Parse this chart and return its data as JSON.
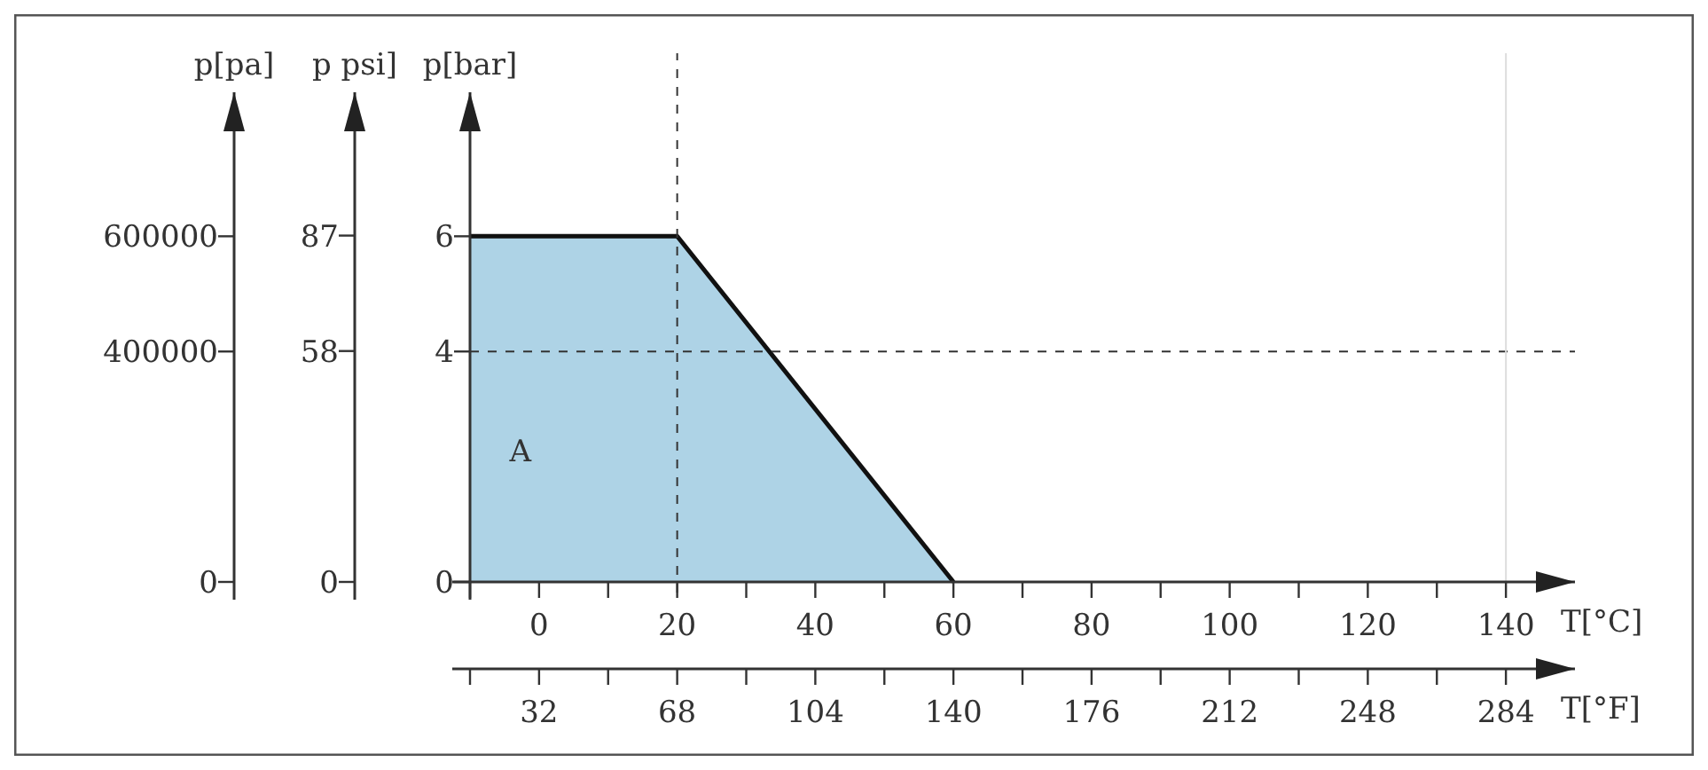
{
  "chart_data": {
    "type": "area",
    "xlabel": "T[°C]",
    "x2label": "T[°F]",
    "ylabel": "p[bar]",
    "y2label": "p psi]",
    "y3label": "p[pa]",
    "xlim": [
      -10,
      150
    ],
    "xticks": [
      {
        "value": -10,
        "label": null
      },
      0,
      {
        "value": 10,
        "label": null
      },
      20,
      {
        "value": 30,
        "label": null
      },
      40,
      {
        "value": 50,
        "label": null
      },
      60,
      {
        "value": 70,
        "label": null
      },
      80,
      {
        "value": 90,
        "label": null
      },
      100,
      {
        "value": 110,
        "label": null
      },
      120,
      {
        "value": 130,
        "label": null
      },
      140
    ],
    "x2lim": [
      14,
      302
    ],
    "x2ticks": [
      {
        "value": 14,
        "label": null
      },
      32,
      {
        "value": 50,
        "label": null
      },
      68,
      {
        "value": 86,
        "label": null
      },
      104,
      {
        "value": 122,
        "label": null
      },
      140,
      {
        "value": 158,
        "label": null
      },
      176,
      {
        "value": 194,
        "label": null
      },
      212,
      {
        "value": 230,
        "label": null
      },
      248,
      {
        "value": 266,
        "label": null
      },
      284
    ],
    "ylim": [
      0,
      8.5
    ],
    "yticks": [
      0,
      4,
      6
    ],
    "y2lim": [
      0,
      123
    ],
    "y2ticks": [
      0,
      58,
      87
    ],
    "y3lim": [
      0,
      850000
    ],
    "y3ticks": [
      0,
      400000,
      600000
    ],
    "series": [
      {
        "x": [
          -10,
          20,
          60
        ],
        "values": [
          6,
          6,
          0
        ],
        "color": "#aed3e6"
      }
    ],
    "ref_lines": [
      {
        "axis": "x",
        "value": 20,
        "line_style": "dashed",
        "color": "#333333"
      },
      {
        "axis": "y",
        "value": 4,
        "line_style": "dashed",
        "color": "#333333"
      },
      {
        "axis": "x",
        "value": 140,
        "line_style": "solid",
        "color": "#dddddd"
      }
    ],
    "annotations": [
      "A"
    ],
    "grid": false,
    "marker": "none",
    "line_style": "solid"
  }
}
